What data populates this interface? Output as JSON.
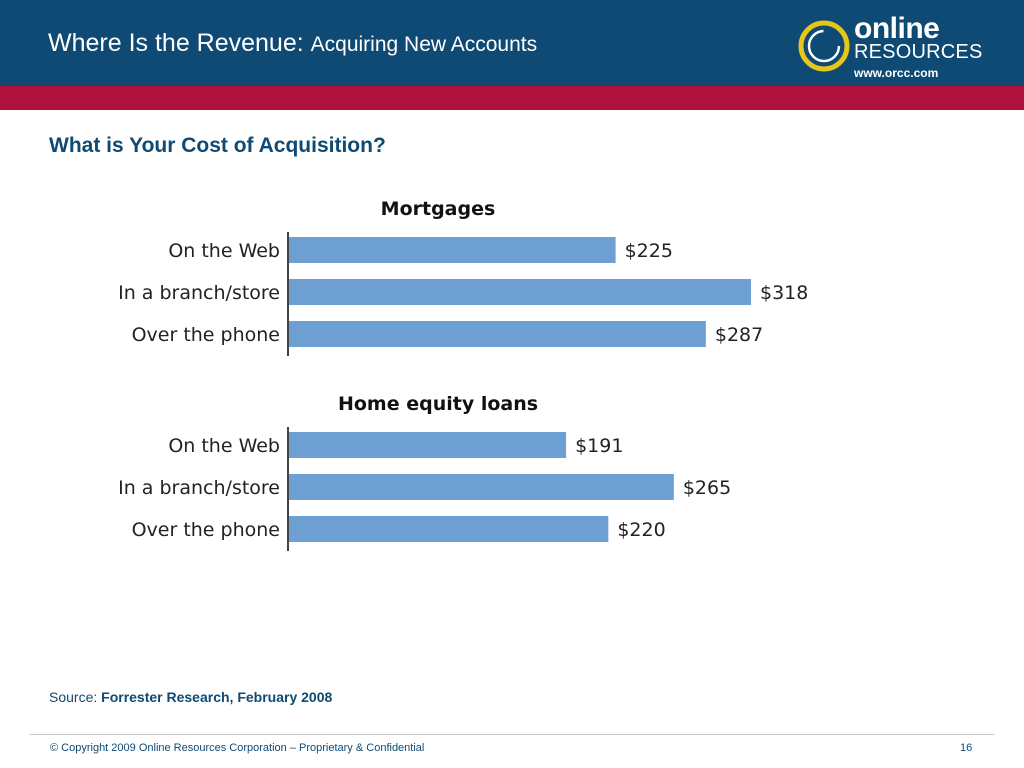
{
  "header": {
    "title": "Where Is the Revenue",
    "title_colon": ":",
    "subtitle": "Acquiring New Accounts"
  },
  "logo": {
    "word1": "online",
    "word2": "RESOURCES",
    "url": "www.orcc.com"
  },
  "slide_title": "What is Your Cost of Acquisition?",
  "colors": {
    "header_bg": "#0e4a73",
    "accent_bar": "#b0103c",
    "bar_fill": "#6d9fd3",
    "logo_ring": "#e8c51a"
  },
  "chart_data": [
    {
      "type": "bar",
      "orientation": "horizontal",
      "title": "Mortgages",
      "categories": [
        "On the Web",
        "In a branch/store",
        "Over the phone"
      ],
      "values": [
        225,
        318,
        287
      ],
      "value_labels": [
        "$225",
        "$318",
        "$287"
      ],
      "xlim": [
        0,
        318
      ],
      "grid": false
    },
    {
      "type": "bar",
      "orientation": "horizontal",
      "title": "Home equity loans",
      "categories": [
        "On the Web",
        "In a branch/store",
        "Over the phone"
      ],
      "values": [
        191,
        265,
        220
      ],
      "value_labels": [
        "$191",
        "$265",
        "$220"
      ],
      "xlim": [
        0,
        318
      ],
      "grid": false
    }
  ],
  "source": {
    "label": "Source:",
    "text": "Forrester Research, February 2008"
  },
  "footer": {
    "copyright": "© Copyright 2009 Online Resources Corporation – Proprietary & Confidential",
    "page_number": "16"
  }
}
